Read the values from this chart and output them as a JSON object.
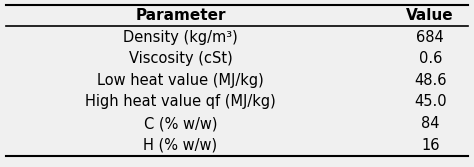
{
  "headers": [
    "Parameter",
    "Value"
  ],
  "rows": [
    [
      "Density (kg/m³)",
      "684"
    ],
    [
      "Viscosity (cSt)",
      "0.6"
    ],
    [
      "Low heat value (MJ/kg)",
      "48.6"
    ],
    [
      "High heat value qf (MJ/kg)",
      "45.0"
    ],
    [
      "C (% w/w)",
      "84"
    ],
    [
      "H (% w/w)",
      "16"
    ]
  ],
  "background_color": "#f0f0f0",
  "line_color": "#000000",
  "text_color": "#000000",
  "header_fontsize": 11,
  "row_fontsize": 10.5
}
